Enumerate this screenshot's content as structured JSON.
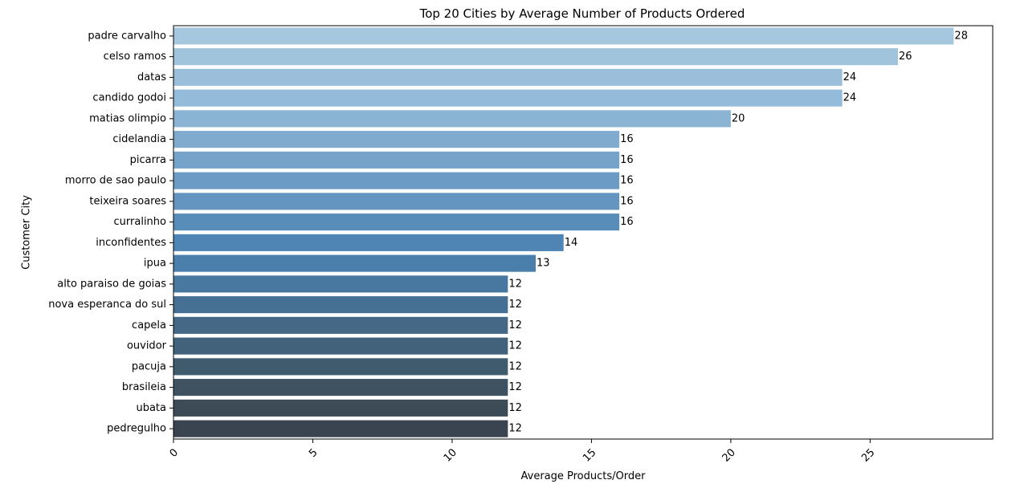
{
  "chart_data": {
    "type": "bar",
    "orientation": "horizontal",
    "title": "Top 20 Cities by Average Number of Products Ordered",
    "xlabel": "Average Products/Order",
    "ylabel": "Customer City",
    "categories": [
      "padre carvalho",
      "celso ramos",
      "datas",
      "candido godoi",
      "matias olimpio",
      "cidelandia",
      "picarra",
      "morro de sao paulo",
      "teixeira soares",
      "curralinho",
      "inconfidentes",
      "ipua",
      "alto paraiso de goias",
      "nova esperanca do sul",
      "capela",
      "ouvidor",
      "pacuja",
      "brasileia",
      "ubata",
      "pedregulho"
    ],
    "values": [
      28,
      26,
      24,
      24,
      20,
      16,
      16,
      16,
      16,
      16,
      14,
      13,
      12,
      12,
      12,
      12,
      12,
      12,
      12,
      12
    ],
    "data_labels": [
      "28",
      "26",
      "24",
      "24",
      "20",
      "16",
      "16",
      "16",
      "16",
      "16",
      "14",
      "13",
      "12",
      "12",
      "12",
      "12",
      "12",
      "12",
      "12",
      "12"
    ],
    "xlim": [
      0,
      29.4
    ],
    "xticks": [
      0,
      5,
      10,
      15,
      20,
      25
    ],
    "xtick_rotation": 45,
    "grid": false,
    "palette": "Blues_d (light to dark, top to bottom)",
    "colors": [
      "#a6c8df",
      "#a0c4dc",
      "#9bbfdb",
      "#94bbd9",
      "#8ab3d4",
      "#80abcf",
      "#76a3ca",
      "#6c9cc5",
      "#6395c0",
      "#588dba",
      "#4e85b4",
      "#4a7fac",
      "#4877a0",
      "#467093",
      "#446886",
      "#42617a",
      "#405a6e",
      "#3e5262",
      "#3c4b56",
      "#3a4450"
    ]
  }
}
